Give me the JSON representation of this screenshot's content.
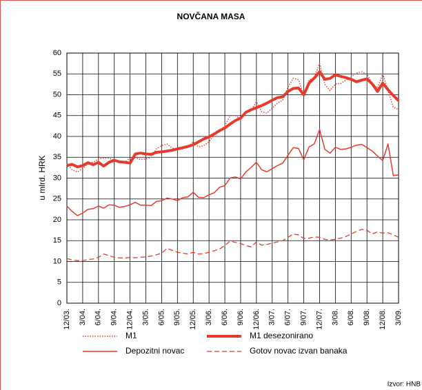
{
  "chart_data": {
    "type": "line",
    "title": "NOVČANA MASA",
    "y_label": "u mlrd. HRK",
    "source": "Izvor: HNB",
    "categories": [
      "12/03.",
      null,
      null,
      "3/04.",
      null,
      null,
      "6/04.",
      null,
      null,
      "9/04.",
      null,
      null,
      "12/04.",
      null,
      null,
      "3/05.",
      null,
      null,
      "6/05.",
      null,
      null,
      "9/05.",
      null,
      null,
      "12/05.",
      null,
      null,
      "3/06.",
      null,
      null,
      "6/06.",
      null,
      null,
      "9/06.",
      null,
      null,
      "12/06.",
      null,
      null,
      "3/07.",
      null,
      null,
      "6/07.",
      null,
      null,
      "9/07.",
      null,
      null,
      "12/07.",
      null,
      null,
      "3/08.",
      null,
      null,
      "6/08.",
      null,
      null,
      "9/08.",
      null,
      null,
      "12/08.",
      null,
      null,
      "3/09."
    ],
    "ylim": [
      0,
      60
    ],
    "yticks": [
      0,
      5,
      10,
      15,
      20,
      25,
      30,
      35,
      40,
      45,
      50,
      55,
      60
    ],
    "grid": true,
    "series": [
      {
        "name": "M1",
        "color": "#e8392d",
        "style": "dotted",
        "values": [
          33.5,
          32.0,
          31.5,
          32.3,
          33.5,
          33.8,
          34.6,
          34.8,
          34.8,
          34.2,
          33.8,
          33.8,
          34.8,
          34.8,
          34.5,
          34.6,
          35.0,
          37.0,
          37.8,
          38.2,
          37.2,
          36.8,
          37.0,
          37.5,
          38.7,
          37.5,
          37.8,
          38.7,
          40.5,
          41.2,
          42.5,
          45.0,
          45.0,
          44.2,
          45.8,
          46.3,
          48.3,
          45.9,
          45.6,
          46.8,
          48.0,
          48.7,
          51.8,
          54.0,
          53.6,
          49.7,
          53.5,
          54.2,
          57.5,
          52.5,
          51.0,
          52.6,
          52.7,
          53.5,
          54.3,
          55.2,
          55.5,
          54.9,
          52.8,
          51.6,
          55.0,
          51.0,
          47.0,
          46.5
        ]
      },
      {
        "name": "M1 desezonirano",
        "color": "#e8392d",
        "style": "thick",
        "values": [
          33.0,
          33.3,
          32.7,
          33.0,
          33.7,
          33.2,
          33.8,
          32.9,
          33.8,
          34.3,
          33.9,
          33.8,
          33.6,
          35.8,
          36.0,
          35.8,
          35.7,
          36.2,
          36.3,
          36.5,
          36.7,
          37.0,
          37.3,
          37.6,
          38.0,
          38.7,
          39.4,
          39.9,
          40.6,
          41.4,
          42.0,
          43.0,
          43.8,
          44.4,
          45.8,
          46.4,
          46.9,
          47.4,
          48.0,
          48.7,
          49.3,
          49.5,
          50.8,
          51.5,
          51.6,
          50.0,
          52.8,
          54.0,
          55.5,
          53.7,
          53.9,
          54.8,
          54.4,
          54.1,
          53.7,
          53.1,
          53.5,
          53.8,
          52.6,
          50.8,
          52.8,
          51.2,
          49.8,
          48.6
        ]
      },
      {
        "name": "Depozitni novac",
        "color": "#e8392d",
        "style": "solid",
        "values": [
          23.3,
          22.0,
          21.0,
          21.6,
          22.5,
          22.7,
          23.3,
          22.8,
          23.6,
          23.5,
          23.0,
          23.2,
          23.6,
          24.2,
          23.5,
          23.5,
          23.4,
          24.4,
          24.6,
          25.2,
          25.0,
          24.6,
          25.3,
          25.5,
          26.6,
          25.4,
          25.3,
          26.0,
          26.5,
          27.8,
          28.2,
          30.0,
          30.3,
          29.8,
          31.5,
          32.6,
          33.8,
          32.0,
          31.5,
          32.3,
          33.0,
          33.6,
          35.5,
          37.3,
          37.1,
          34.4,
          37.5,
          38.2,
          41.7,
          36.9,
          36.0,
          37.4,
          36.9,
          37.0,
          37.4,
          37.9,
          38.1,
          37.3,
          36.5,
          35.3,
          34.2,
          38.2,
          30.6,
          30.8
        ]
      },
      {
        "name": "Gotov novac izvan banaka",
        "color": "#e8392d",
        "style": "dashed",
        "values": [
          10.7,
          10.4,
          10.2,
          10.2,
          10.5,
          10.6,
          11.0,
          11.8,
          11.4,
          11.0,
          10.9,
          10.8,
          11.0,
          10.9,
          11.0,
          11.1,
          11.3,
          11.6,
          12.0,
          13.1,
          12.7,
          12.2,
          12.0,
          11.8,
          12.2,
          11.8,
          11.9,
          12.2,
          12.6,
          13.0,
          13.8,
          14.9,
          14.6,
          14.3,
          13.8,
          13.5,
          14.7,
          13.9,
          14.1,
          14.4,
          14.7,
          15.0,
          15.8,
          16.6,
          16.4,
          15.5,
          15.6,
          15.9,
          15.8,
          15.3,
          15.2,
          15.3,
          15.6,
          16.0,
          16.6,
          17.2,
          17.7,
          17.5,
          16.6,
          17.1,
          16.8,
          16.9,
          16.4,
          15.8
        ]
      }
    ]
  }
}
